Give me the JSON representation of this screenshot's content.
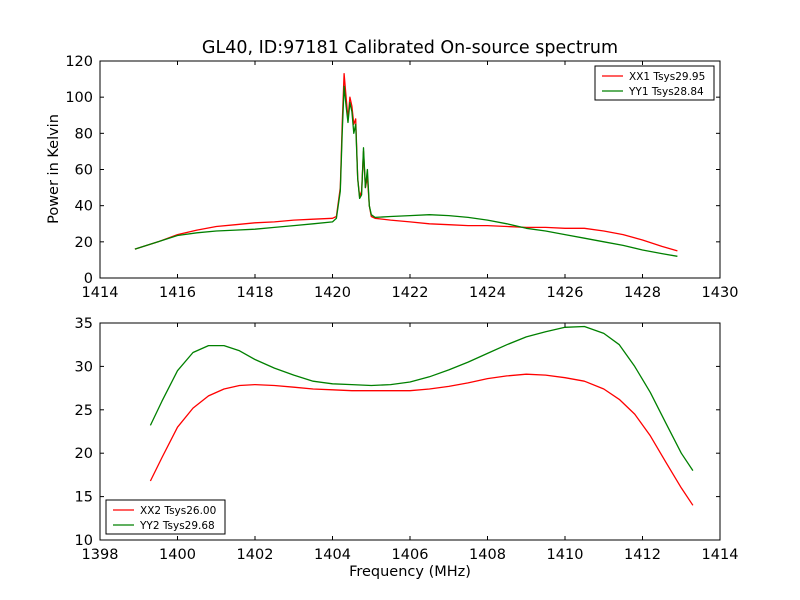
{
  "chart_data": [
    {
      "type": "line",
      "title": "GL40, ID:97181 Calibrated On-source spectrum",
      "xlabel": "",
      "ylabel": "Power in Kelvin",
      "xlim": [
        1414,
        1430
      ],
      "ylim": [
        0,
        120
      ],
      "xticks": [
        "1414",
        "1416",
        "1418",
        "1420",
        "1422",
        "1424",
        "1426",
        "1428",
        "1430"
      ],
      "yticks": [
        "0",
        "20",
        "40",
        "60",
        "80",
        "100",
        "120"
      ],
      "grid": false,
      "legend": "top-right",
      "series": [
        {
          "name": "XX1 Tsys29.95",
          "color": "#ff0000",
          "x": [
            1414.9,
            1415.5,
            1416,
            1416.5,
            1417,
            1417.5,
            1418,
            1418.5,
            1419,
            1419.5,
            1420,
            1420.1,
            1420.2,
            1420.25,
            1420.3,
            1420.35,
            1420.4,
            1420.45,
            1420.5,
            1420.55,
            1420.6,
            1420.65,
            1420.7,
            1420.75,
            1420.8,
            1420.85,
            1420.9,
            1420.95,
            1421,
            1421.1,
            1421.5,
            1422,
            1422.5,
            1423,
            1423.5,
            1424,
            1424.5,
            1425,
            1425.5,
            1426,
            1426.5,
            1427,
            1427.5,
            1428,
            1428.5,
            1428.9
          ],
          "y": [
            16,
            20,
            24,
            26.5,
            28.5,
            29.5,
            30.5,
            31,
            32,
            32.5,
            33,
            34,
            50,
            85,
            113,
            100,
            88,
            100,
            95,
            85,
            88,
            55,
            45,
            48,
            70,
            50,
            56,
            40,
            34,
            33,
            32,
            31,
            30,
            29.5,
            29,
            29,
            28.5,
            28,
            28,
            27.5,
            27.5,
            26,
            24,
            21,
            17.5,
            15
          ]
        },
        {
          "name": "YY1 Tsys28.84",
          "color": "#008000",
          "x": [
            1414.9,
            1415.5,
            1416,
            1416.5,
            1417,
            1417.5,
            1418,
            1418.5,
            1419,
            1419.5,
            1420,
            1420.1,
            1420.2,
            1420.25,
            1420.3,
            1420.35,
            1420.4,
            1420.45,
            1420.5,
            1420.55,
            1420.6,
            1420.65,
            1420.7,
            1420.75,
            1420.8,
            1420.85,
            1420.9,
            1420.95,
            1421,
            1421.1,
            1421.5,
            1422,
            1422.5,
            1423,
            1423.5,
            1424,
            1424.5,
            1425,
            1425.5,
            1426,
            1426.5,
            1427,
            1427.5,
            1428,
            1428.5,
            1428.9
          ],
          "y": [
            16,
            20,
            23.5,
            25,
            26,
            26.5,
            27,
            28,
            29,
            30,
            31,
            33,
            48,
            80,
            106,
            95,
            86,
            97,
            92,
            80,
            85,
            55,
            44,
            46,
            72,
            50,
            60,
            40,
            35,
            33.5,
            34,
            34.5,
            35,
            34.5,
            33.5,
            32,
            30,
            27.5,
            26,
            24,
            22,
            20,
            18,
            15.5,
            13.5,
            12
          ]
        }
      ]
    },
    {
      "type": "line",
      "title": "",
      "xlabel": "Frequency (MHz)",
      "ylabel": "",
      "xlim": [
        1398,
        1414
      ],
      "ylim": [
        10,
        35
      ],
      "xticks": [
        "1398",
        "1400",
        "1402",
        "1404",
        "1406",
        "1408",
        "1410",
        "1412",
        "1414"
      ],
      "yticks": [
        "10",
        "15",
        "20",
        "25",
        "30",
        "35"
      ],
      "grid": false,
      "legend": "bottom-left",
      "series": [
        {
          "name": "XX2 Tsys26.00",
          "color": "#ff0000",
          "x": [
            1399.3,
            1399.6,
            1400,
            1400.4,
            1400.8,
            1401.2,
            1401.6,
            1402,
            1402.5,
            1403,
            1403.5,
            1404,
            1404.5,
            1405,
            1405.5,
            1406,
            1406.5,
            1407,
            1407.5,
            1408,
            1408.5,
            1409,
            1409.5,
            1410,
            1410.5,
            1411,
            1411.4,
            1411.8,
            1412.2,
            1412.6,
            1413,
            1413.3
          ],
          "y": [
            16.8,
            19.5,
            23,
            25.2,
            26.6,
            27.4,
            27.8,
            27.9,
            27.8,
            27.6,
            27.4,
            27.3,
            27.2,
            27.2,
            27.2,
            27.2,
            27.4,
            27.7,
            28.1,
            28.6,
            28.9,
            29.1,
            29,
            28.7,
            28.3,
            27.4,
            26.2,
            24.5,
            22,
            19,
            16,
            14
          ]
        },
        {
          "name": "YY2 Tsys29.68",
          "color": "#008000",
          "x": [
            1399.3,
            1399.6,
            1400,
            1400.4,
            1400.8,
            1401.2,
            1401.6,
            1402,
            1402.5,
            1403,
            1403.5,
            1404,
            1404.5,
            1405,
            1405.5,
            1406,
            1406.5,
            1407,
            1407.5,
            1408,
            1408.5,
            1409,
            1409.5,
            1410,
            1410.5,
            1411,
            1411.4,
            1411.8,
            1412.2,
            1412.6,
            1413,
            1413.3
          ],
          "y": [
            23.2,
            26,
            29.5,
            31.6,
            32.4,
            32.4,
            31.8,
            30.8,
            29.8,
            29,
            28.3,
            28,
            27.9,
            27.8,
            27.9,
            28.2,
            28.8,
            29.6,
            30.5,
            31.5,
            32.5,
            33.4,
            34,
            34.5,
            34.6,
            33.8,
            32.5,
            30,
            27,
            23.5,
            20,
            18
          ]
        }
      ]
    }
  ]
}
